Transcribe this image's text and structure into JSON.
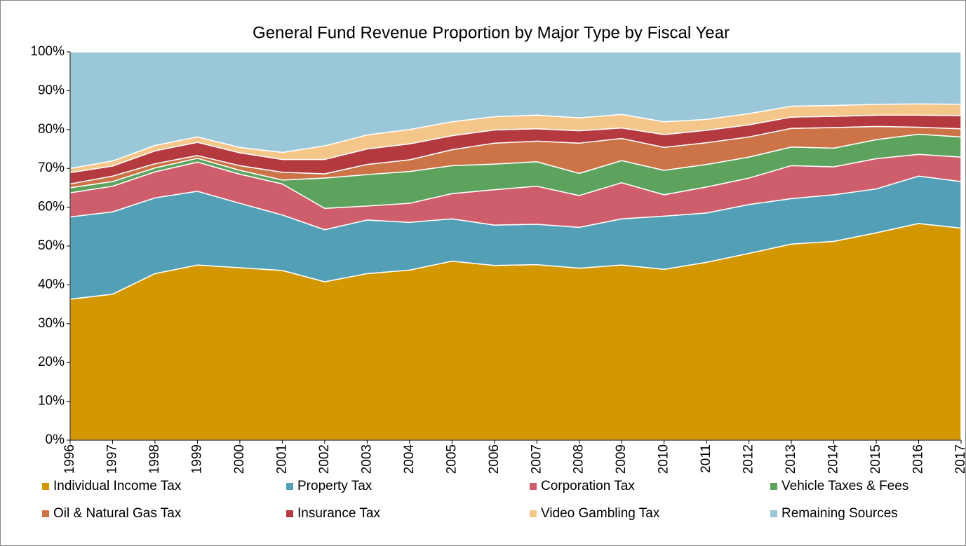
{
  "chart_data": {
    "type": "stacked-area",
    "title": "General Fund Revenue Proportion by Major Type by Fiscal Year",
    "categories": [
      "1996",
      "1997",
      "1998",
      "1999",
      "2000",
      "2001",
      "2002",
      "2003",
      "2004",
      "2005",
      "2006",
      "2007",
      "2008",
      "2009",
      "2010",
      "2011",
      "2012",
      "2013",
      "2014",
      "2015",
      "2016",
      "2017"
    ],
    "ylim": [
      0,
      100
    ],
    "yticks": [
      {
        "value": 0,
        "label": "0%"
      },
      {
        "value": 10,
        "label": "10%"
      },
      {
        "value": 20,
        "label": "20%"
      },
      {
        "value": 30,
        "label": "30%"
      },
      {
        "value": 40,
        "label": "40%"
      },
      {
        "value": 50,
        "label": "50%"
      },
      {
        "value": 60,
        "label": "60%"
      },
      {
        "value": 70,
        "label": "70%"
      },
      {
        "value": 80,
        "label": "80%"
      },
      {
        "value": 90,
        "label": "90%"
      },
      {
        "value": 100,
        "label": "100%"
      }
    ],
    "legend": "bottom",
    "series": [
      {
        "name": "Individual Income Tax",
        "color": "#d39700",
        "values": [
          36.3,
          37.6,
          42.9,
          45.1,
          44.4,
          43.7,
          40.8,
          42.9,
          43.8,
          46.1,
          45.0,
          45.2,
          44.3,
          45.1,
          44.0,
          45.8,
          48.1,
          50.5,
          51.2,
          53.4,
          55.8,
          54.6
        ]
      },
      {
        "name": "Property Tax",
        "color": "#53a0b6",
        "values": [
          21.2,
          21.2,
          19.5,
          19.0,
          16.6,
          14.3,
          13.4,
          13.8,
          12.3,
          10.9,
          10.4,
          10.4,
          10.5,
          11.9,
          13.7,
          12.7,
          12.6,
          11.7,
          12.0,
          11.3,
          12.2,
          12.0
        ]
      },
      {
        "name": "Corporation Tax",
        "color": "#cf5e6c",
        "values": [
          6.2,
          6.6,
          6.7,
          7.5,
          7.5,
          8.0,
          5.5,
          3.6,
          4.9,
          6.5,
          9.1,
          9.8,
          8.2,
          9.3,
          5.5,
          6.7,
          6.8,
          8.5,
          7.2,
          7.8,
          5.6,
          6.3
        ]
      },
      {
        "name": "Vehicle Taxes & Fees",
        "color": "#5da35e",
        "values": [
          1.3,
          1.2,
          1.0,
          1.0,
          1.0,
          1.0,
          7.8,
          8.1,
          8.2,
          7.2,
          6.6,
          6.3,
          5.7,
          5.7,
          6.3,
          5.8,
          5.4,
          4.8,
          4.8,
          4.9,
          5.2,
          5.2
        ]
      },
      {
        "name": "Oil & Natural Gas Tax",
        "color": "#cc7448",
        "values": [
          1.0,
          1.4,
          1.1,
          0.7,
          1.2,
          2.0,
          1.1,
          2.6,
          3.0,
          4.1,
          5.4,
          5.3,
          7.8,
          5.7,
          5.9,
          5.6,
          5.2,
          4.8,
          5.3,
          3.4,
          1.8,
          2.1
        ]
      },
      {
        "name": "Insurance Tax",
        "color": "#b53a3f",
        "values": [
          2.9,
          2.6,
          3.3,
          3.4,
          3.3,
          3.3,
          3.7,
          4.0,
          4.1,
          3.6,
          3.4,
          3.2,
          3.2,
          2.7,
          3.3,
          3.2,
          3.1,
          2.9,
          2.9,
          2.9,
          3.1,
          3.4
        ]
      },
      {
        "name": "Video Gambling Tax",
        "color": "#f5c68a",
        "values": [
          1.1,
          1.3,
          1.4,
          1.4,
          1.4,
          1.8,
          3.5,
          3.6,
          3.7,
          3.6,
          3.4,
          3.5,
          3.3,
          3.5,
          3.3,
          2.8,
          2.9,
          2.8,
          2.8,
          2.8,
          2.9,
          2.9
        ]
      },
      {
        "name": "Remaining Sources",
        "color": "#9bc8d8",
        "values": [
          30.0,
          28.1,
          24.1,
          21.9,
          24.6,
          25.9,
          24.2,
          21.4,
          20.0,
          18.0,
          16.7,
          16.3,
          17.0,
          16.1,
          18.0,
          17.4,
          15.9,
          14.0,
          13.8,
          13.5,
          13.4,
          13.5
        ]
      }
    ]
  }
}
